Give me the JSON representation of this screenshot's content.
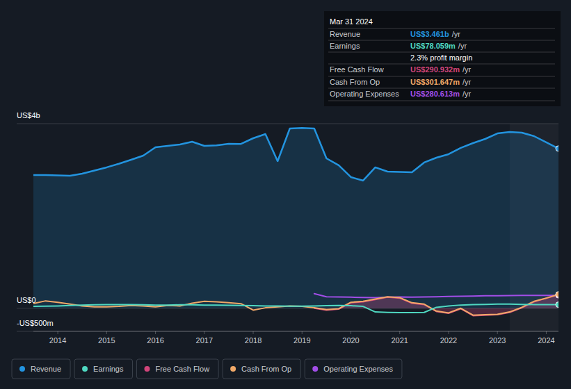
{
  "chart_data": {
    "type": "line",
    "x": [
      2013.5,
      2013.75,
      2014,
      2014.25,
      2014.5,
      2014.75,
      2015,
      2015.25,
      2015.5,
      2015.75,
      2016,
      2016.25,
      2016.5,
      2016.75,
      2017,
      2017.25,
      2017.5,
      2017.75,
      2018,
      2018.25,
      2018.5,
      2018.75,
      2019,
      2019.25,
      2019.5,
      2019.75,
      2020,
      2020.25,
      2020.5,
      2020.75,
      2021,
      2021.25,
      2021.5,
      2021.75,
      2022,
      2022.25,
      2022.5,
      2022.75,
      2023,
      2023.25,
      2023.5,
      2023.75,
      2024,
      2024.25
    ],
    "series": [
      {
        "name": "Revenue",
        "color": "#2394df",
        "type": "area",
        "values": [
          2887,
          2885,
          2878,
          2872,
          2917,
          2985,
          3053,
          3130,
          3218,
          3308,
          3489,
          3520,
          3549,
          3609,
          3519,
          3530,
          3564,
          3560,
          3684,
          3774,
          3188,
          3895,
          3905,
          3895,
          3248,
          3098,
          2842,
          2767,
          3053,
          2962,
          2955,
          2947,
          3158,
          3263,
          3338,
          3474,
          3579,
          3669,
          3789,
          3820,
          3805,
          3729,
          3594,
          3461
        ]
      },
      {
        "name": "Earnings",
        "color": "#4fd8c1",
        "type": "line",
        "values": [
          40,
          45,
          50,
          60,
          70,
          75,
          80,
          80,
          80,
          75,
          70,
          70,
          75,
          75,
          70,
          70,
          65,
          60,
          55,
          50,
          50,
          45,
          45,
          50,
          55,
          60,
          55,
          40,
          -80,
          -90,
          -95,
          -95,
          -90,
          20,
          50,
          70,
          80,
          85,
          90,
          90,
          85,
          80,
          80,
          78.059
        ]
      },
      {
        "name": "Free Cash Flow",
        "color": "#d1457a",
        "type": "area",
        "values": [
          null,
          null,
          null,
          null,
          null,
          null,
          null,
          null,
          null,
          null,
          null,
          null,
          null,
          null,
          null,
          null,
          null,
          null,
          null,
          null,
          null,
          null,
          null,
          0,
          -40,
          -20,
          120,
          140,
          190,
          240,
          220,
          110,
          80,
          -70,
          -110,
          -10,
          -160,
          -150,
          -140,
          -90,
          10,
          140,
          220,
          290.932
        ]
      },
      {
        "name": "Cash From Op",
        "color": "#f0a868",
        "type": "line",
        "values": [
          100,
          160,
          130,
          90,
          50,
          30,
          30,
          40,
          60,
          50,
          30,
          60,
          50,
          110,
          150,
          140,
          120,
          100,
          -40,
          10,
          30,
          50,
          40,
          10,
          -30,
          -10,
          130,
          150,
          200,
          250,
          230,
          120,
          90,
          -60,
          -100,
          0,
          -150,
          -140,
          -130,
          -80,
          20,
          150,
          220,
          301.647
        ]
      },
      {
        "name": "Operating Expenses",
        "color": "#a24ee8",
        "type": "line",
        "values": [
          null,
          null,
          null,
          null,
          null,
          null,
          null,
          null,
          null,
          null,
          null,
          null,
          null,
          null,
          null,
          null,
          null,
          null,
          null,
          null,
          null,
          null,
          null,
          316,
          250,
          245,
          240,
          235,
          230,
          240,
          245,
          240,
          245,
          250,
          255,
          260,
          265,
          270,
          270,
          275,
          278,
          280,
          280,
          280.613
        ]
      }
    ],
    "xlim": [
      2013.5,
      2024.25
    ],
    "xticks": [
      2014,
      2015,
      2016,
      2017,
      2018,
      2019,
      2020,
      2021,
      2022,
      2023,
      2024
    ],
    "ylim": [
      -500,
      4000
    ],
    "yticks": [
      {
        "value": -500,
        "label": "-US$500m"
      },
      {
        "value": 0,
        "label": "US$0"
      },
      {
        "value": 4000,
        "label": "US$4b"
      }
    ],
    "highlight_x": [
      2023.25,
      2024.25
    ],
    "grid": true,
    "legend": "bottom"
  },
  "tooltip": {
    "title": "Mar 31 2024",
    "rows": [
      {
        "label": "Revenue",
        "value": "US$3.461b",
        "unit": "/yr"
      },
      {
        "label": "Earnings",
        "value": "US$78.059m",
        "unit": "/yr"
      },
      {
        "label": "Free Cash Flow",
        "value": "US$290.932m",
        "unit": "/yr"
      },
      {
        "label": "Cash From Op",
        "value": "US$301.647m",
        "unit": "/yr"
      },
      {
        "label": "Operating Expenses",
        "value": "US$280.613m",
        "unit": "/yr"
      }
    ],
    "margin": "2.3% profit margin"
  }
}
